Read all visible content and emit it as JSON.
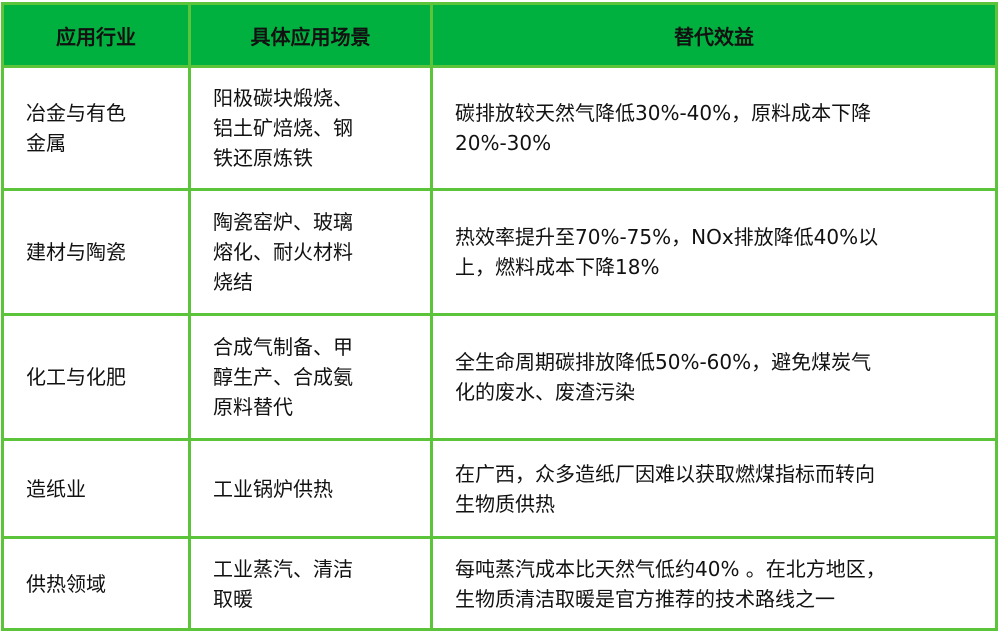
{
  "colors": {
    "header_bg": "#00b140",
    "border": "#5cc43a",
    "text": "#111111"
  },
  "headers": [
    "应用行业",
    "具体应用场景",
    "替代效益"
  ],
  "rows": [
    {
      "industry": [
        "冶金与有色",
        "金属"
      ],
      "scenario": [
        "阳极碳块煅烧、",
        "铝土矿焙烧、钢",
        "铁还原炼铁"
      ],
      "benefit": [
        "碳排放较天然气降低30%-40%，原料成本下降",
        "20%-30%"
      ]
    },
    {
      "industry": [
        "建材与陶瓷"
      ],
      "scenario": [
        "陶瓷窑炉、玻璃",
        "熔化、耐火材料",
        "烧结"
      ],
      "benefit": [
        "热效率提升至70%-75%，NOx排放降低40%以",
        "上，燃料成本下降18%"
      ]
    },
    {
      "industry": [
        "化工与化肥"
      ],
      "scenario": [
        "合成气制备、甲",
        "醇生产、合成氨",
        "原料替代"
      ],
      "benefit": [
        "全生命周期碳排放降低50%-60%，避免煤炭气",
        "化的废水、废渣污染"
      ]
    },
    {
      "industry": [
        "造纸业"
      ],
      "scenario": [
        "工业锅炉供热"
      ],
      "benefit": [
        "在广西，众多造纸厂因难以获取燃煤指标而转向",
        "生物质供热"
      ]
    },
    {
      "industry": [
        "供热领域"
      ],
      "scenario": [
        "工业蒸汽、清洁",
        "取暖"
      ],
      "benefit": [
        "每吨蒸汽成本比天然气低约40% 。在北方地区，",
        "生物质清洁取暖是官方推荐的技术路线之一"
      ]
    }
  ]
}
